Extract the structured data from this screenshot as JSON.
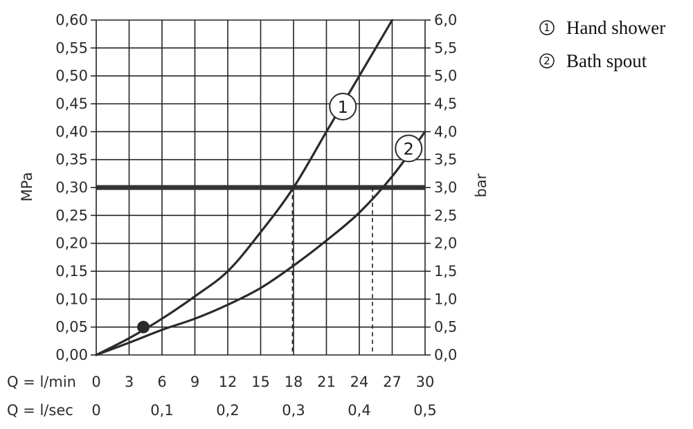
{
  "chart_data": {
    "type": "line",
    "x_primary": {
      "label": "Q = l/min",
      "ticks": [
        0,
        3,
        6,
        9,
        12,
        15,
        18,
        21,
        24,
        27,
        30
      ],
      "range": [
        0,
        30
      ]
    },
    "x_secondary": {
      "label": "Q = l/sec",
      "ticks": [
        "0",
        "0,1",
        "0,2",
        "0,3",
        "0,4",
        "0,5"
      ]
    },
    "y_left": {
      "label": "MPa",
      "ticks": [
        "0,00",
        "0,05",
        "0,10",
        "0,15",
        "0,20",
        "0,25",
        "0,30",
        "0,35",
        "0,40",
        "0,45",
        "0,50",
        "0,55",
        "0,60"
      ],
      "range": [
        0,
        0.6
      ]
    },
    "y_right": {
      "label": "bar",
      "ticks": [
        "0,0",
        "0,5",
        "1,0",
        "1,5",
        "2,0",
        "2,5",
        "3,0",
        "3,5",
        "4,0",
        "4,5",
        "5,0",
        "5,5",
        "6,0"
      ]
    },
    "grid": true,
    "series": [
      {
        "name": "Hand shower",
        "marker_label": "1",
        "x": [
          0,
          3,
          6,
          9,
          12,
          15,
          18,
          21,
          24,
          27
        ],
        "y": [
          0,
          0.03,
          0.065,
          0.105,
          0.15,
          0.22,
          0.3,
          0.4,
          0.5,
          0.6
        ]
      },
      {
        "name": "Bath spout",
        "marker_label": "2",
        "x": [
          0,
          3,
          6,
          9,
          12,
          15,
          18,
          21,
          24,
          27,
          30
        ],
        "y": [
          0,
          0.022,
          0.045,
          0.065,
          0.09,
          0.12,
          0.16,
          0.205,
          0.255,
          0.32,
          0.4
        ]
      }
    ],
    "reference_line": {
      "y": 0.3
    },
    "drop_lines": [
      {
        "x": 17.9,
        "y": 0.3
      },
      {
        "x": 25.2,
        "y": 0.3
      }
    ],
    "marker_point": {
      "x": 4.3,
      "y": 0.05
    },
    "curve_labels": [
      {
        "label": "1",
        "x": 22.5,
        "y": 0.445
      },
      {
        "label": "2",
        "x": 28.5,
        "y": 0.37
      }
    ]
  },
  "legend": {
    "items": [
      {
        "number": "1",
        "label": "Hand shower"
      },
      {
        "number": "2",
        "label": "Bath spout"
      }
    ]
  }
}
